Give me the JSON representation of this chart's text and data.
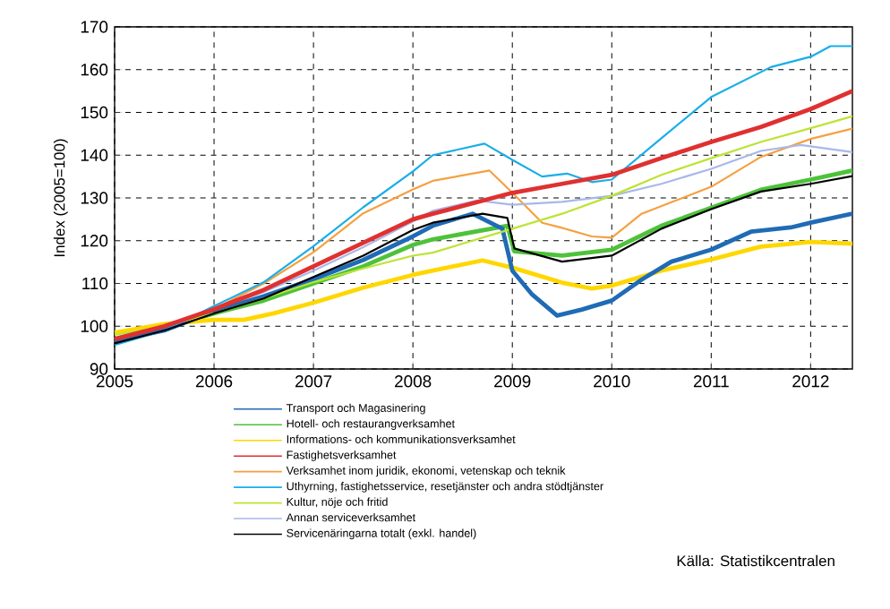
{
  "chart_data": {
    "type": "line",
    "ylabel": "Index (2005=100)",
    "xlim": [
      2005,
      2012.42
    ],
    "ylim": [
      90,
      170
    ],
    "xticks": [
      2005,
      2006,
      2007,
      2008,
      2009,
      2010,
      2011,
      2012
    ],
    "yticks": [
      90,
      100,
      110,
      120,
      130,
      140,
      150,
      160,
      170
    ],
    "grid": true,
    "legend": "bottom",
    "marker": "none",
    "line_style": "solid",
    "annotations": [
      "Källa: Statistikcentralen"
    ],
    "series": [
      {
        "name": "Transport och Magasinering",
        "color": "#1f6bb5",
        "x": [
          2005,
          2005.5,
          2006,
          2006.5,
          2007,
          2007.5,
          2008,
          2008.2,
          2008.6,
          2008.9,
          2009,
          2009.2,
          2009.45,
          2009.7,
          2010,
          2010.3,
          2010.6,
          2011,
          2011.4,
          2011.8,
          2012,
          2012.42
        ],
        "values": [
          96.5,
          99,
          103.5,
          107,
          111,
          115.5,
          121,
          123.5,
          126.3,
          122.8,
          113,
          107.4,
          102.5,
          103.9,
          106,
          110.9,
          115.1,
          117.9,
          122.1,
          123.1,
          124.2,
          126.3
        ]
      },
      {
        "name": "Hotell- och restaurangverksamhet",
        "color": "#4ec23a",
        "x": [
          2005,
          2005.5,
          2006,
          2006.5,
          2007,
          2007.5,
          2008,
          2008.2,
          2008.95,
          2009.02,
          2009.5,
          2010,
          2010.5,
          2011,
          2011.5,
          2012,
          2012.42
        ],
        "values": [
          97,
          99.5,
          103,
          106,
          110,
          114,
          119,
          120.3,
          123.5,
          117.5,
          116.5,
          117.9,
          123.5,
          127.7,
          131.9,
          134.3,
          136.4
        ]
      },
      {
        "name": "Informations- och kommunikationsverksamhet",
        "color": "#ffd700",
        "x": [
          2005,
          2005.5,
          2006,
          2006.3,
          2006.6,
          2007,
          2007.5,
          2008,
          2008.2,
          2008.7,
          2009,
          2009.5,
          2009.8,
          2010,
          2010.5,
          2011,
          2011.5,
          2012,
          2012.42
        ],
        "values": [
          98.5,
          100.5,
          101.5,
          101.5,
          103,
          105.5,
          109,
          112,
          113,
          115.4,
          113.7,
          110.2,
          108.8,
          109.5,
          113,
          115.6,
          118.6,
          119.7,
          119.3
        ]
      },
      {
        "name": "Fastighetsverksamhet",
        "color": "#e03030",
        "x": [
          2005,
          2005.5,
          2006,
          2006.5,
          2007,
          2007.5,
          2008,
          2008.2,
          2009,
          2009.5,
          2010,
          2010.5,
          2011,
          2011.5,
          2012,
          2012.42
        ],
        "values": [
          97,
          100,
          104,
          108.5,
          114,
          119.5,
          125,
          126.3,
          131.2,
          133.3,
          135.4,
          139.3,
          143.1,
          146.6,
          150.8,
          155
        ]
      },
      {
        "name": "Verksamhet inom juridik, ekonomi, vetenskap och teknik",
        "color": "#f5a040",
        "x": [
          2005,
          2005.5,
          2006,
          2006.5,
          2007,
          2007.5,
          2008,
          2008.2,
          2008.77,
          2009,
          2009.3,
          2009.5,
          2009.8,
          2010,
          2010.3,
          2010.6,
          2011,
          2011.5,
          2012,
          2012.42
        ],
        "values": [
          97,
          100,
          104,
          110,
          117.3,
          126.4,
          132,
          134,
          136.4,
          131.2,
          124.2,
          123,
          121,
          120.7,
          126.3,
          129,
          132.6,
          139.6,
          143.8,
          146.2
        ]
      },
      {
        "name": "Uthyrning, fastighetsservice, resetjänster och andra stödtjänster",
        "color": "#19aee8",
        "x": [
          2005,
          2005.5,
          2006,
          2006.5,
          2007,
          2007.5,
          2008,
          2008.2,
          2008.72,
          2009,
          2009.3,
          2009.55,
          2009.8,
          2010,
          2010.45,
          2011,
          2011.6,
          2012,
          2012.2,
          2012.42
        ],
        "values": [
          95.6,
          99,
          104.7,
          110.3,
          118.7,
          127.8,
          136.2,
          140,
          142.7,
          138.9,
          135,
          135.7,
          133.7,
          134.3,
          143,
          153.6,
          160.6,
          163,
          165.5,
          165.5
        ]
      },
      {
        "name": "Kultur, nöje och fritid",
        "color": "#bde334",
        "x": [
          2005,
          2005.5,
          2006,
          2006.5,
          2007,
          2007.5,
          2008,
          2008.2,
          2009,
          2009.5,
          2010,
          2010.5,
          2011,
          2011.5,
          2012,
          2012.42
        ],
        "values": [
          98,
          100,
          103,
          106.5,
          110.3,
          113.5,
          116.5,
          117.2,
          122.8,
          126.3,
          130.5,
          135.4,
          139.3,
          143.1,
          146.3,
          149.1
        ]
      },
      {
        "name": "Annan serviceverksamhet",
        "color": "#a9b8e8",
        "x": [
          2005,
          2005.5,
          2006,
          2006.5,
          2007,
          2007.5,
          2008,
          2008.2,
          2008.65,
          2009,
          2009.5,
          2010,
          2010.5,
          2011,
          2011.5,
          2011.9,
          2012.42
        ],
        "values": [
          97,
          100,
          104,
          108,
          113,
          118.5,
          124.5,
          127,
          129.4,
          128.4,
          129.1,
          130.5,
          133.3,
          136.8,
          141,
          142.4,
          140.7
        ]
      },
      {
        "name": "Servicenäringarna totalt (exkl. handel)",
        "color": "#000000",
        "x": [
          2005,
          2005.5,
          2006,
          2006.5,
          2007,
          2007.5,
          2008,
          2008.2,
          2008.7,
          2008.95,
          2009.02,
          2009.5,
          2010,
          2010.5,
          2011,
          2011.5,
          2012,
          2012.42
        ],
        "values": [
          96,
          99,
          103,
          106.5,
          111.5,
          116.5,
          122.5,
          124.2,
          126.3,
          125.3,
          118.2,
          115.1,
          116.5,
          122.8,
          127.4,
          131.5,
          133.3,
          135.1
        ]
      }
    ]
  }
}
